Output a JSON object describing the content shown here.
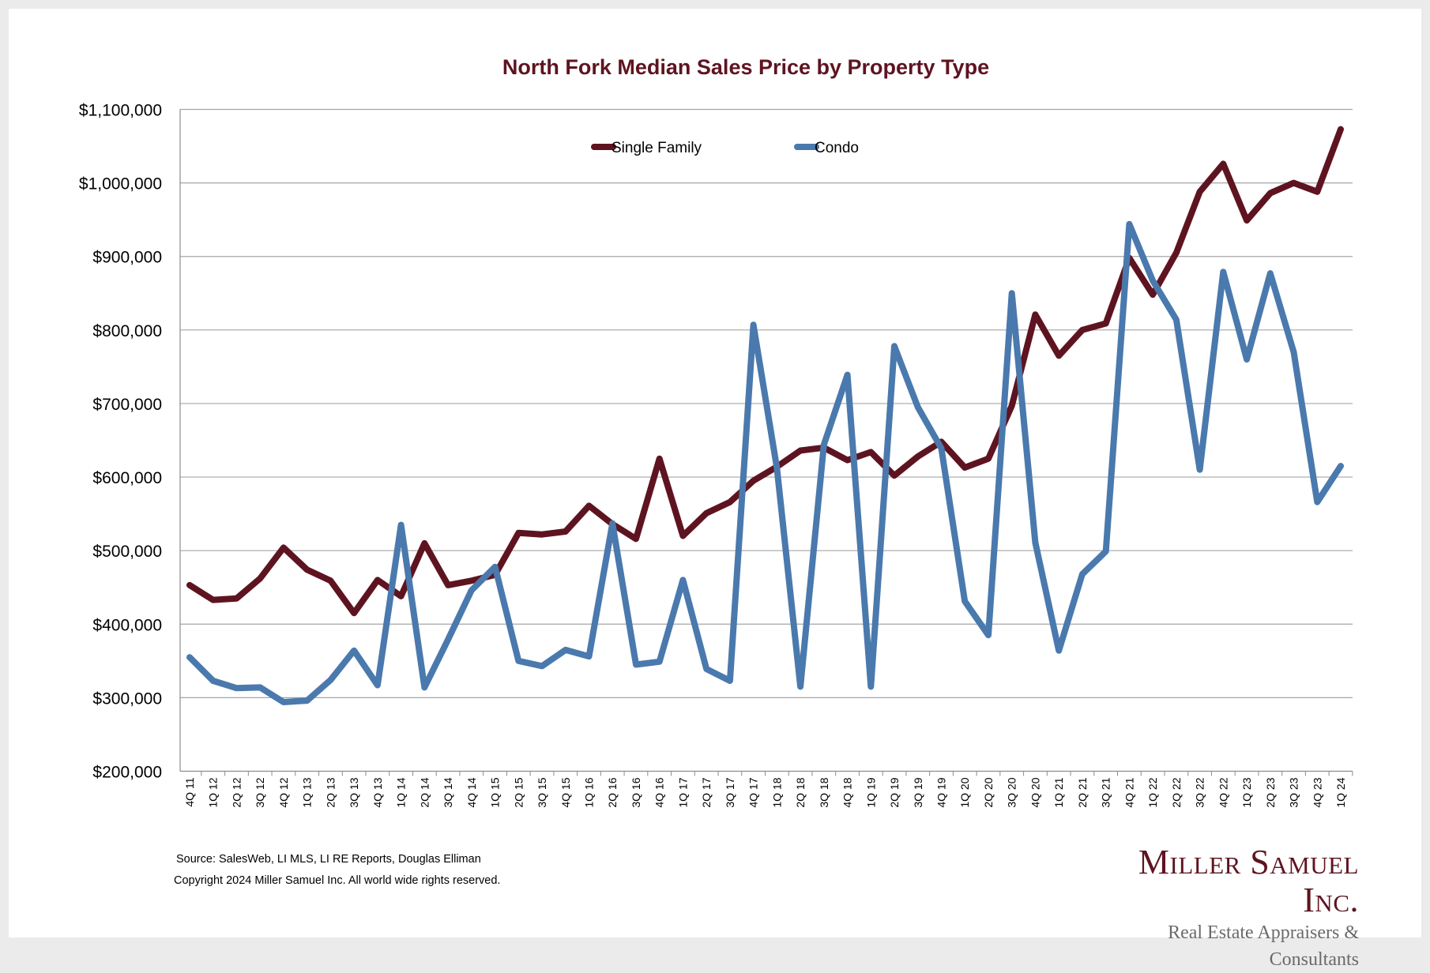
{
  "chart_data": {
    "type": "line",
    "title": "North Fork Median Sales Price by Property Type",
    "xlabel": "",
    "ylabel": "",
    "ylim": [
      200000,
      1100000
    ],
    "yticks": [
      "$200,000",
      "$300,000",
      "$400,000",
      "$500,000",
      "$600,000",
      "$700,000",
      "$800,000",
      "$900,000",
      "$1,000,000",
      "$1,100,000"
    ],
    "ytick_values": [
      200000,
      300000,
      400000,
      500000,
      600000,
      700000,
      800000,
      900000,
      1000000,
      1100000
    ],
    "grid": true,
    "legend_placement": "top-center",
    "categories": [
      "4Q 11",
      "1Q 12",
      "2Q 12",
      "3Q 12",
      "4Q 12",
      "1Q 13",
      "2Q 13",
      "3Q 13",
      "4Q 13",
      "1Q 14",
      "2Q 14",
      "3Q 14",
      "4Q 14",
      "1Q 15",
      "2Q 15",
      "3Q 15",
      "4Q 15",
      "1Q 16",
      "2Q 16",
      "3Q 16",
      "4Q 16",
      "1Q 17",
      "2Q 17",
      "3Q 17",
      "4Q 17",
      "1Q 18",
      "2Q 18",
      "3Q 18",
      "4Q 18",
      "1Q 19",
      "2Q 19",
      "3Q 19",
      "4Q 19",
      "1Q 20",
      "2Q 20",
      "3Q 20",
      "4Q 20",
      "1Q 21",
      "2Q 21",
      "3Q 21",
      "4Q 21",
      "1Q 22",
      "2Q 22",
      "3Q 22",
      "4Q 22",
      "1Q 23",
      "2Q 23",
      "3Q 23",
      "4Q 23",
      "1Q 24"
    ],
    "series": [
      {
        "name": "Single Family",
        "color": "#5e1420",
        "values": [
          453000,
          433000,
          435000,
          462000,
          504000,
          474000,
          459000,
          415000,
          460000,
          438000,
          510000,
          453000,
          459000,
          467000,
          524000,
          522000,
          526000,
          561000,
          536000,
          516000,
          625000,
          520000,
          551000,
          566000,
          595000,
          614000,
          636000,
          640000,
          623000,
          634000,
          602000,
          628000,
          648000,
          613000,
          625000,
          697000,
          821000,
          765000,
          800000,
          809000,
          898000,
          848000,
          905000,
          988000,
          1026000,
          949000,
          986000,
          1000000,
          988000,
          1073000
        ]
      },
      {
        "name": "Condo",
        "color": "#4a79ad",
        "values": [
          355000,
          323000,
          313000,
          314000,
          294000,
          296000,
          324000,
          364000,
          317000,
          535000,
          314000,
          379000,
          446000,
          478000,
          350000,
          343000,
          365000,
          356000,
          537000,
          345000,
          349000,
          460000,
          339000,
          323000,
          807000,
          612000,
          315000,
          644000,
          739000,
          315000,
          778000,
          695000,
          639000,
          431000,
          385000,
          850000,
          511000,
          364000,
          468000,
          499000,
          944000,
          867000,
          814000,
          610000,
          879000,
          760000,
          877000,
          770000,
          566000,
          615000
        ]
      }
    ]
  },
  "footer": {
    "source": "Source: SalesWeb, LI MLS, LI RE Reports, Douglas Elliman",
    "copyright": "Copyright 2024 Miller Samuel Inc.  All world wide rights reserved."
  },
  "logo": {
    "name": "Miller Samuel Inc.",
    "tagline": "Real Estate Appraisers & Consultants"
  }
}
